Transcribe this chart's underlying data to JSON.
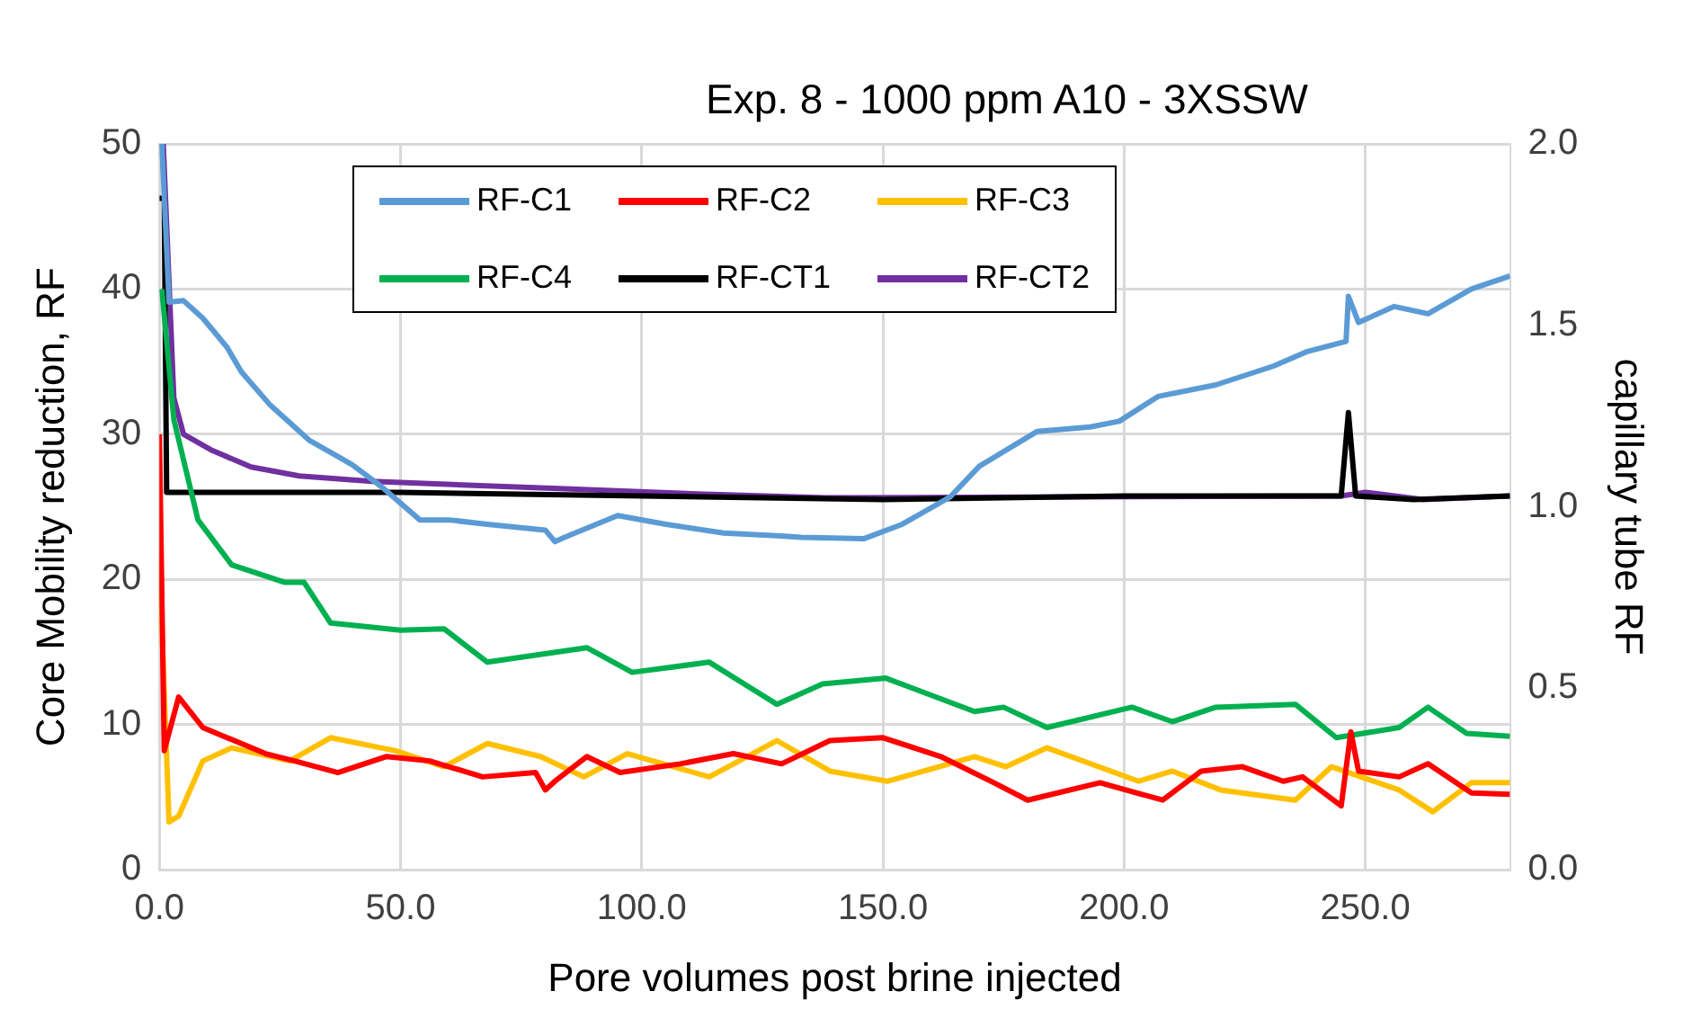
{
  "chart_data": {
    "type": "line",
    "title": "Exp. 8 - 1000 ppm A10 - 3XSSW",
    "xlabel": "Pore volumes post brine injected",
    "ylabel": "Core Mobility reduction, RF",
    "y2label": "capillary tube RF",
    "xlim": [
      0,
      280
    ],
    "xticks": [
      {
        "value": 0,
        "label": "0.0"
      },
      {
        "value": 50,
        "label": "50.0"
      },
      {
        "value": 100,
        "label": "100.0"
      },
      {
        "value": 150,
        "label": "150.0"
      },
      {
        "value": 200,
        "label": "200.0"
      },
      {
        "value": 250,
        "label": "250.0"
      }
    ],
    "ylim": [
      0,
      50
    ],
    "yticks": [
      0,
      10,
      20,
      30,
      40,
      50
    ],
    "y2lim": [
      0,
      2
    ],
    "y2ticks": [
      {
        "value": 0,
        "label": "0.0"
      },
      {
        "value": 0.5,
        "label": "0.5"
      },
      {
        "value": 1,
        "label": "1.0"
      },
      {
        "value": 1.5,
        "label": "1.5"
      },
      {
        "value": 2,
        "label": "2.0"
      }
    ],
    "grid": true,
    "legend": "top left",
    "marker": "none",
    "line_style": "solid",
    "series": [
      {
        "name": "RF-C1",
        "color": "#5b9bd5",
        "x": [
          0,
          0.5,
          2,
          5,
          9,
          14,
          17,
          23,
          31,
          40,
          46,
          54,
          60,
          68,
          80,
          82,
          84,
          95,
          105,
          117,
          129,
          133,
          146,
          154,
          164,
          170,
          182,
          193,
          199,
          207,
          219,
          231,
          238,
          246,
          246.5,
          248.6,
          256,
          263,
          272,
          280
        ],
        "values": [
          50,
          50,
          39.1,
          39.2,
          38,
          36,
          34.3,
          32,
          29.6,
          27.9,
          26.4,
          24.1,
          24.1,
          23.8,
          23.4,
          22.6,
          22.9,
          24.4,
          23.8,
          23.2,
          23,
          22.9,
          22.8,
          23.8,
          25.7,
          27.8,
          30.2,
          30.5,
          30.9,
          32.6,
          33.4,
          34.7,
          35.7,
          36.4,
          39.5,
          37.7,
          38.8,
          38.3,
          40,
          40.9
        ]
      },
      {
        "name": "RF-C2",
        "color": "#ff0000",
        "x": [
          0,
          1,
          4,
          9,
          22,
          28,
          37,
          47,
          56,
          67,
          78,
          80,
          82,
          88.6,
          95.5,
          108,
          119,
          129,
          139,
          150,
          162,
          173,
          180,
          195,
          208,
          216,
          224.5,
          233,
          237,
          245,
          247,
          248.6,
          257,
          263,
          272,
          280
        ],
        "values": [
          30,
          8.2,
          11.9,
          9.8,
          8,
          7.5,
          6.7,
          7.8,
          7.5,
          6.4,
          6.7,
          5.5,
          6.1,
          7.8,
          6.7,
          7.3,
          8,
          7.3,
          8.9,
          9.1,
          7.8,
          6,
          4.8,
          6,
          4.8,
          6.8,
          7.1,
          6.1,
          6.4,
          4.4,
          9.5,
          6.8,
          6.4,
          7.3,
          5.3,
          5.2
        ]
      },
      {
        "name": "RF-C3",
        "color": "#ffc000",
        "x": [
          0,
          2,
          4,
          9,
          15,
          27,
          35.5,
          49,
          59,
          68,
          79,
          88,
          97,
          114,
          128,
          139,
          151,
          169,
          175.5,
          184,
          203,
          210,
          220,
          235.5,
          243,
          257,
          264,
          272,
          280
        ],
        "values": [
          21.5,
          3.3,
          3.7,
          7.5,
          8.4,
          7.5,
          9.1,
          8.2,
          7.1,
          8.7,
          7.8,
          6.4,
          8,
          6.4,
          8.9,
          6.8,
          6.1,
          7.8,
          7.1,
          8.4,
          6.1,
          6.8,
          5.5,
          4.8,
          7.1,
          5.5,
          4,
          6,
          6
        ]
      },
      {
        "name": "RF-C4",
        "color": "#00b050",
        "x": [
          0.5,
          3,
          8,
          15,
          26,
          30,
          35.5,
          50,
          59,
          68,
          88.6,
          98,
          114,
          128,
          137.5,
          150.6,
          169,
          175,
          184,
          201.6,
          210,
          219,
          235.5,
          244,
          257,
          263,
          271,
          280
        ],
        "values": [
          40,
          31,
          24.1,
          21,
          19.8,
          19.8,
          17,
          16.5,
          16.6,
          14.3,
          15.3,
          13.6,
          14.3,
          11.4,
          12.8,
          13.2,
          10.9,
          11.2,
          9.8,
          11.2,
          10.2,
          11.2,
          11.4,
          9.1,
          9.8,
          11.2,
          9.4,
          9.2
        ]
      },
      {
        "name": "RF-CT1",
        "color": "#000000",
        "axis": "y2",
        "x": [
          0,
          1,
          1.5,
          50,
          100,
          150,
          200,
          245,
          246.5,
          248,
          260,
          280
        ],
        "values": [
          1.85,
          1.85,
          1.04,
          1.04,
          1.03,
          1.02,
          1.03,
          1.03,
          1.26,
          1.03,
          1.02,
          1.03
        ]
      },
      {
        "name": "RF-CT2",
        "color": "#7030a0",
        "axis": "y2",
        "x": [
          0.8,
          3,
          5,
          11,
          19,
          29,
          44,
          64,
          84,
          113,
          138,
          245,
          250,
          262,
          280
        ],
        "values": [
          2,
          1.3,
          1.2,
          1.155,
          1.11,
          1.085,
          1.07,
          1.06,
          1.05,
          1.035,
          1.025,
          1.03,
          1.04,
          1.02,
          1.03
        ]
      }
    ]
  }
}
